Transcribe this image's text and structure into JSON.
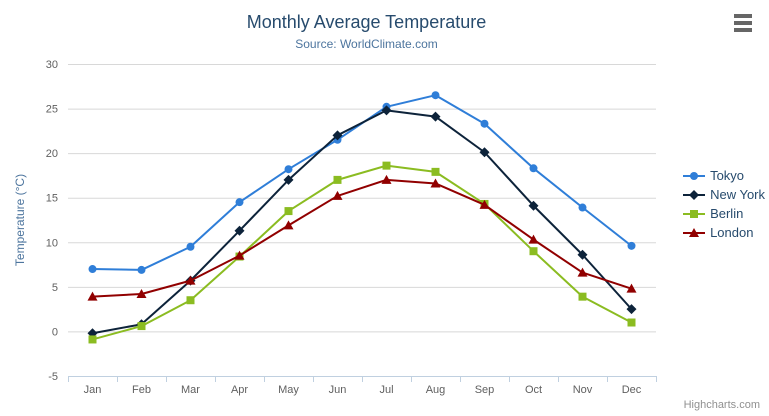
{
  "header": {
    "title": "Monthly Average Temperature",
    "subtitle": "Source: WorldClimate.com"
  },
  "credits": {
    "text": "Highcharts.com"
  },
  "export_menu": {
    "icon": "hamburger-icon"
  },
  "colors": {
    "title": "#274b6d",
    "subtitle": "#4d759e",
    "axis_title": "#4d759e",
    "tick_label": "#606060",
    "grid_line": "#d8d8d8",
    "axis_line": "#c0d0e0",
    "legend_text": "#274b6d",
    "credits_text": "#909090",
    "background": "#ffffff"
  },
  "chart_data": {
    "type": "line",
    "title": "Monthly Average Temperature",
    "subtitle": "Source: WorldClimate.com",
    "categories": [
      "Jan",
      "Feb",
      "Mar",
      "Apr",
      "May",
      "Jun",
      "Jul",
      "Aug",
      "Sep",
      "Oct",
      "Nov",
      "Dec"
    ],
    "series": [
      {
        "name": "Tokyo",
        "color": "#2f7ed8",
        "marker": "circle",
        "values": [
          7.0,
          6.9,
          9.5,
          14.5,
          18.2,
          21.5,
          25.2,
          26.5,
          23.3,
          18.3,
          13.9,
          9.6
        ]
      },
      {
        "name": "New York",
        "color": "#0d233a",
        "marker": "diamond",
        "values": [
          -0.2,
          0.8,
          5.7,
          11.3,
          17.0,
          22.0,
          24.8,
          24.1,
          20.1,
          14.1,
          8.6,
          2.5
        ]
      },
      {
        "name": "Berlin",
        "color": "#8bbc21",
        "marker": "square",
        "values": [
          -0.9,
          0.6,
          3.5,
          8.4,
          13.5,
          17.0,
          18.6,
          17.9,
          14.3,
          9.0,
          3.9,
          1.0
        ]
      },
      {
        "name": "London",
        "color": "#910000",
        "marker": "triangle",
        "values": [
          3.9,
          4.2,
          5.7,
          8.5,
          11.9,
          15.2,
          17.0,
          16.6,
          14.2,
          10.3,
          6.6,
          4.8
        ]
      }
    ],
    "xlabel": "",
    "ylabel": "Temperature (°C)",
    "ylim": [
      -5,
      30
    ],
    "ytick_step": 5,
    "yticks": [
      -5,
      0,
      5,
      10,
      15,
      20,
      25,
      30
    ],
    "grid": true,
    "legend_position": "right"
  }
}
